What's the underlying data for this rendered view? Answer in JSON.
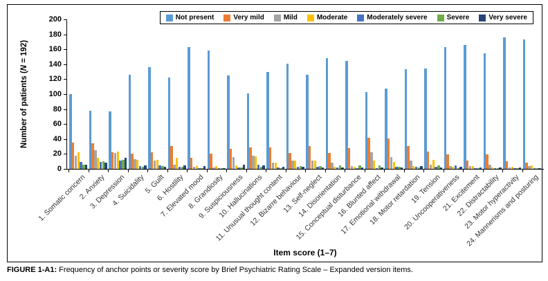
{
  "figure": {
    "caption_label": "FIGURE 1-A1:",
    "caption_text": " Frequency of anchor points or severity score by Brief Psychiatric Rating Scale – Expanded version items."
  },
  "chart_data": {
    "type": "bar",
    "title": "",
    "xlabel": "Item score (1–7)",
    "ylabel_prefix": "Number of patients (",
    "ylabel_italic": "N",
    "ylabel_suffix": " = 192)",
    "ylim": [
      0,
      200
    ],
    "ytick_step": 20,
    "grid": false,
    "legend_position": "top-right",
    "categories": [
      "1. Somatic concern",
      "2. Anxiety",
      "3. Depression",
      "4. Suicidality",
      "5. Guilt",
      "6. Hostility",
      "7. Elevated mood",
      "8. Grandiosity",
      "9. Suspiciousness",
      "10. Hallucinations",
      "11. Unusual thought content",
      "12. Bizarre behaviour",
      "13. Self-neglect",
      "14. Disorientation",
      "15. Conceptual disturbance",
      "16. Blunted affect",
      "17. Emotional withdrawal",
      "18. Motor retardation",
      "19. Tension",
      "20. Uncooperativeness",
      "21. Excitement",
      "22. Distractability",
      "23. Motor hyperactivity",
      "24. Mannerisms and posturing"
    ],
    "series": [
      {
        "name": "Not present",
        "color": "#5B9BD5",
        "values": [
          100,
          78,
          77,
          126,
          136,
          122,
          163,
          158,
          125,
          101,
          130,
          141,
          126,
          148,
          144,
          103,
          107,
          133,
          134,
          163,
          166,
          155,
          176,
          173
        ]
      },
      {
        "name": "Very mild",
        "color": "#ED7D31",
        "values": [
          35,
          34,
          22,
          20,
          22,
          31,
          15,
          20,
          27,
          29,
          29,
          21,
          31,
          21,
          28,
          42,
          41,
          31,
          23,
          19,
          11,
          19,
          10,
          8
        ]
      },
      {
        "name": "Mild",
        "color": "#A5A5A5",
        "values": [
          18,
          25,
          21,
          13,
          11,
          6,
          3,
          2,
          16,
          18,
          8,
          11,
          11,
          8,
          4,
          22,
          16,
          11,
          6,
          4,
          4,
          6,
          2,
          4
        ]
      },
      {
        "name": "Moderate",
        "color": "#FFC000",
        "values": [
          22,
          15,
          23,
          12,
          12,
          15,
          4,
          4,
          5,
          17,
          8,
          11,
          11,
          3,
          3,
          11,
          9,
          4,
          12,
          3,
          4,
          2,
          3,
          5
        ]
      },
      {
        "name": "Moderately severe",
        "color": "#4472C4",
        "values": [
          9,
          9,
          11,
          4,
          5,
          3,
          1,
          1,
          2,
          6,
          2,
          3,
          3,
          2,
          1,
          1,
          3,
          3,
          3,
          5,
          1,
          1,
          1,
          1
        ]
      },
      {
        "name": "Severe",
        "color": "#70AD47",
        "values": [
          6,
          10,
          12,
          3,
          4,
          3,
          1,
          1,
          2,
          3,
          1,
          4,
          4,
          5,
          5,
          5,
          3,
          2,
          5,
          1,
          1,
          1,
          1,
          1
        ]
      },
      {
        "name": "Very severe",
        "color": "#264478",
        "values": [
          6,
          8,
          15,
          5,
          3,
          5,
          4,
          1,
          6,
          5,
          3,
          3,
          2,
          2,
          2,
          2,
          2,
          4,
          2,
          3,
          2,
          2,
          2,
          1
        ]
      }
    ]
  }
}
